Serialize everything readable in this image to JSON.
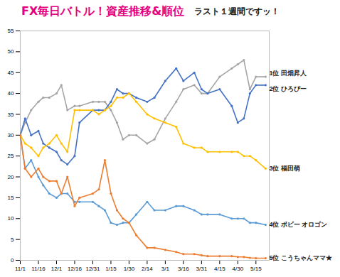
{
  "chart_data": {
    "type": "line",
    "title": "FX毎日バトル！資産推移&順位",
    "annotation": "ラスト１週間ですッ！",
    "x": [
      0,
      4,
      9,
      15,
      19,
      24,
      30,
      34,
      39,
      45,
      49,
      60,
      65,
      70,
      75,
      80,
      85,
      90,
      96,
      105,
      111,
      120,
      129,
      135,
      144,
      150,
      155,
      165,
      175,
      180,
      185,
      190,
      195,
      203
    ],
    "xlim": [
      0,
      206
    ],
    "xticks": [
      {
        "value": 0,
        "label": "11/1"
      },
      {
        "value": 15,
        "label": "11/16"
      },
      {
        "value": 30,
        "label": "12/1"
      },
      {
        "value": 45,
        "label": "12/16"
      },
      {
        "value": 60,
        "label": "12/31"
      },
      {
        "value": 75,
        "label": "1/15"
      },
      {
        "value": 90,
        "label": "1/30"
      },
      {
        "value": 105,
        "label": "2/14"
      },
      {
        "value": 120,
        "label": "3/1"
      },
      {
        "value": 135,
        "label": "3/16"
      },
      {
        "value": 150,
        "label": "3/31"
      },
      {
        "value": 165,
        "label": "4/15"
      },
      {
        "value": 180,
        "label": "4/30"
      },
      {
        "value": 195,
        "label": "5/15"
      }
    ],
    "ylim": [
      0,
      55
    ],
    "yticks": [
      0,
      5,
      10,
      15,
      20,
      25,
      30,
      35,
      40,
      45,
      50,
      55
    ],
    "grid": false,
    "marker": "circle",
    "series": [
      {
        "name": "1位 田畑昇人",
        "color": "#a5a5a5",
        "values": [
          30,
          33,
          36,
          38,
          39,
          39,
          40,
          42,
          36,
          37,
          37,
          38,
          38,
          38,
          36,
          33,
          29,
          30,
          30,
          28,
          29,
          34,
          38,
          41,
          42,
          40,
          40,
          44,
          46,
          47,
          48,
          41,
          44,
          44
        ]
      },
      {
        "name": "2位 ひろぴー",
        "color": "#4472c4",
        "values": [
          30,
          34,
          30,
          31,
          28,
          27,
          26,
          24,
          23,
          25,
          33,
          36,
          36,
          36,
          38,
          41,
          40,
          40,
          39,
          38,
          39,
          43,
          46,
          43,
          45,
          41,
          40,
          41,
          37,
          33,
          34,
          40,
          42,
          42
        ]
      },
      {
        "name": "3位 福田萌",
        "color": "#ffc000",
        "values": [
          30,
          28,
          27,
          25,
          27,
          28,
          30,
          28,
          26,
          36,
          36,
          36,
          35,
          36,
          37,
          39,
          39,
          40,
          38,
          35,
          34,
          33,
          32,
          28,
          27,
          27,
          26,
          26,
          26,
          26,
          25,
          25,
          24,
          22
        ]
      },
      {
        "name": "4位 ボビー オロゴン",
        "color": "#5b9bd5",
        "values": [
          30,
          22,
          24,
          20,
          18,
          16,
          15,
          16,
          16,
          14,
          14,
          14,
          13,
          12,
          9,
          8.5,
          9,
          9,
          11,
          14,
          12,
          12,
          13,
          13,
          12,
          11,
          11,
          11,
          10,
          10,
          10,
          9,
          9,
          8.5
        ]
      },
      {
        "name": "5位 こうちゃんママ★",
        "color": "#ed7d31",
        "values": [
          30,
          22,
          20,
          22,
          20,
          19,
          19,
          16,
          20,
          13,
          15,
          16,
          17,
          24,
          16,
          12,
          10,
          9,
          6,
          3,
          3,
          2.5,
          2,
          1.5,
          1.5,
          1.2,
          1,
          1,
          1,
          0.8,
          0.8,
          0.6,
          0.5,
          0.5
        ]
      }
    ]
  }
}
